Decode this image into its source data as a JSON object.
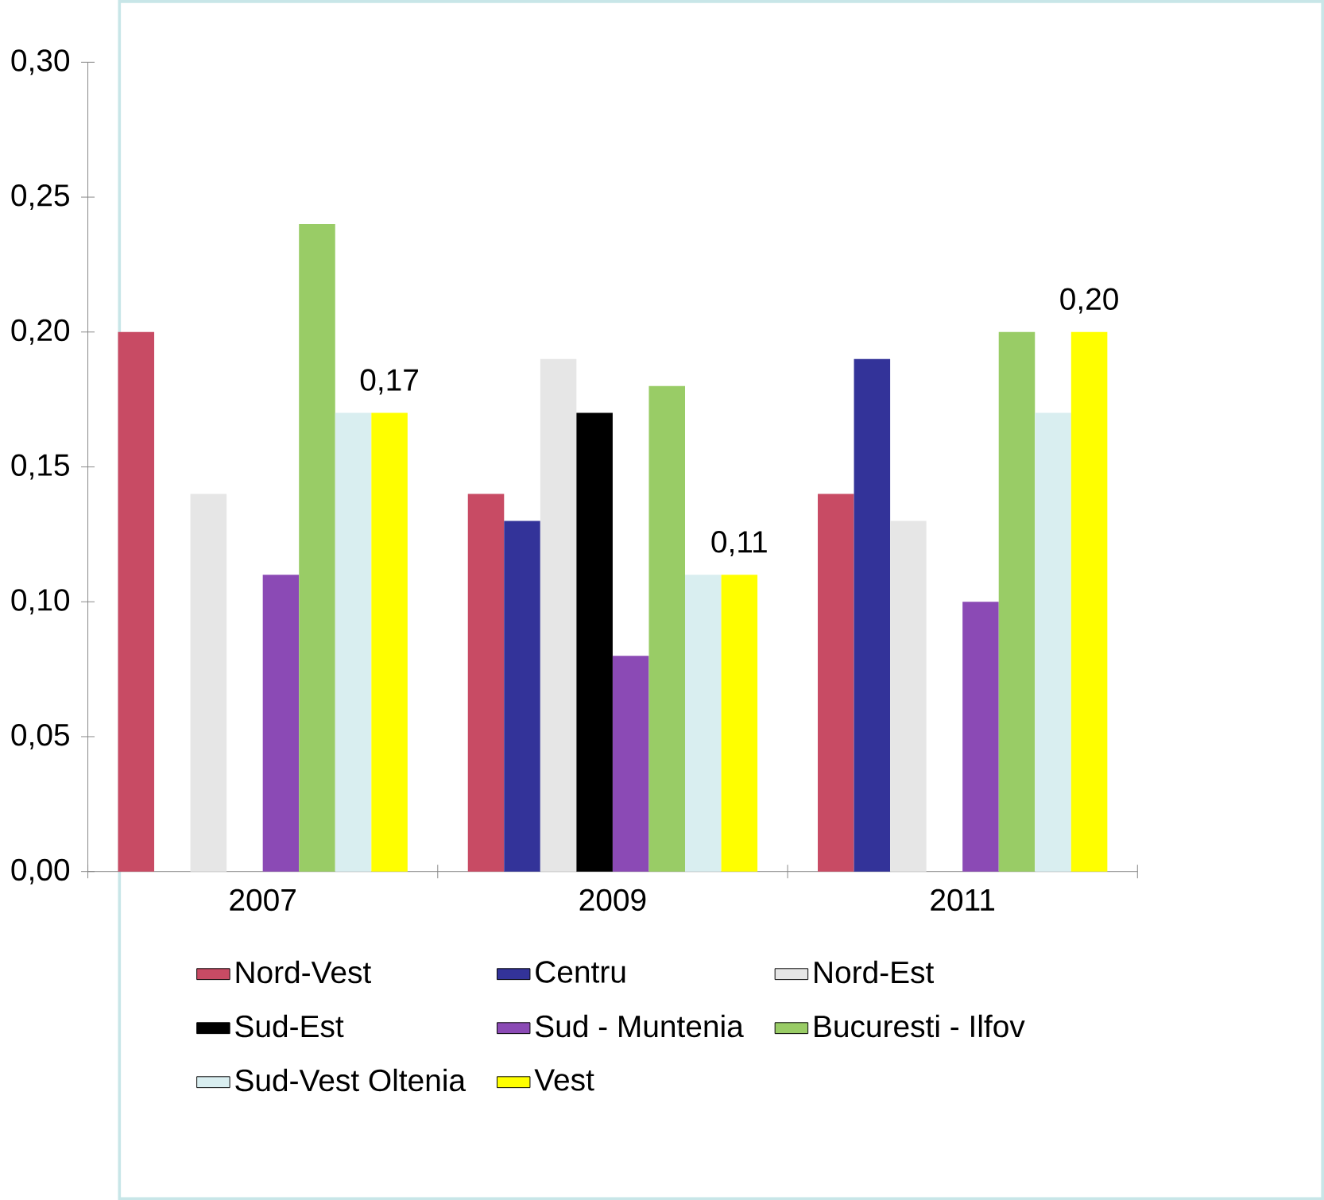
{
  "chart_data": {
    "type": "bar",
    "categories": [
      "2007",
      "2009",
      "2011"
    ],
    "series": [
      {
        "name": "Nord-Vest",
        "color": "#c84b64",
        "values": [
          0.2,
          0.14,
          0.14
        ]
      },
      {
        "name": "Centru",
        "color": "#333399",
        "values": [
          null,
          0.13,
          0.19
        ]
      },
      {
        "name": "Nord-Est",
        "color": "#e6e6e6",
        "values": [
          0.14,
          0.19,
          0.13
        ]
      },
      {
        "name": "Sud-Est",
        "color": "#000000",
        "values": [
          null,
          0.17,
          null
        ]
      },
      {
        "name": "Sud - Muntenia",
        "color": "#8b4ab5",
        "values": [
          0.11,
          0.08,
          0.1
        ]
      },
      {
        "name": "Bucuresti - Ilfov",
        "color": "#99cc66",
        "values": [
          0.24,
          0.18,
          0.2
        ]
      },
      {
        "name": "Sud-Vest Oltenia",
        "color": "#d9eef0",
        "values": [
          0.17,
          0.11,
          0.17
        ]
      },
      {
        "name": "Vest",
        "color": "#ffff00",
        "values": [
          0.17,
          0.11,
          0.2
        ],
        "value_labels": [
          "0,17",
          "0,11",
          "0,20"
        ]
      }
    ],
    "ylim": [
      0,
      0.3
    ],
    "yticks": [
      {
        "value": 0,
        "label": "0,00"
      },
      {
        "value": 0.05,
        "label": "0,05"
      },
      {
        "value": 0.1,
        "label": "0,10"
      },
      {
        "value": 0.15,
        "label": "0,15"
      },
      {
        "value": 0.2,
        "label": "0,20"
      },
      {
        "value": 0.25,
        "label": "0,25"
      },
      {
        "value": 0.3,
        "label": "0,30"
      }
    ],
    "grid": false,
    "legend": "bottom"
  }
}
